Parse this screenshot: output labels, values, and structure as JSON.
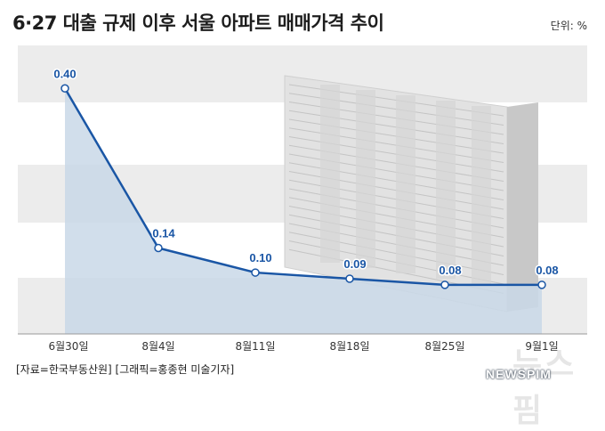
{
  "title": "6·27 대출 규제 이후 서울 아파트 매매가격 추이",
  "unit_label": "단위: %",
  "source": "[자료=한국부동산원] [그래픽=홍종현 미술기자]",
  "logo": {
    "korean": "뉴스핌",
    "word": "NEWSPIM"
  },
  "colors": {
    "line": "#1a56a5",
    "area": "#c9d8e8",
    "band": "#ececec",
    "label": "#1a56a5"
  },
  "chart_data": {
    "type": "area",
    "categories": [
      "6월30일",
      "8월4일",
      "8월11일",
      "8월18일",
      "8월25일",
      "9월1일"
    ],
    "values": [
      0.4,
      0.14,
      0.1,
      0.09,
      0.08,
      0.08
    ],
    "labels": [
      "0.40",
      "0.14",
      "0.10",
      "0.09",
      "0.08",
      "0.08"
    ],
    "ylim": [
      0.0,
      0.47
    ],
    "grid": "horizontal bands",
    "title": "6·27 대출 규제 이후 서울 아파트 매매가격 추이",
    "ylabel": "단위: %"
  }
}
